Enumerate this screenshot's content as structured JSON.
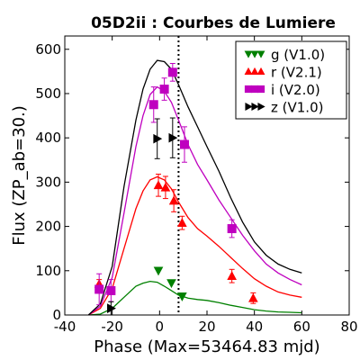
{
  "chart_data": {
    "type": "line",
    "title": "05D2ii : Courbes de Lumiere",
    "xlabel": "Phase (Max=53464.83 mjd)",
    "ylabel": "Flux (ZP_ab=30.)",
    "xlim": [
      -40,
      80
    ],
    "ylim": [
      0,
      630
    ],
    "xticks": [
      -40,
      -20,
      0,
      20,
      40,
      60,
      80
    ],
    "yticks": [
      0,
      100,
      200,
      300,
      400,
      500,
      600
    ],
    "vline_x": 8,
    "legend_position": "top-right",
    "series": [
      {
        "name": "g (V1.0)",
        "color": "#008000",
        "marker": "triangle-down",
        "points": [
          {
            "x": -0.5,
            "y": 100
          },
          {
            "x": 5,
            "y": 72
          },
          {
            "x": 9.5,
            "y": 42
          }
        ],
        "model": [
          [
            -30,
            0
          ],
          [
            -25,
            2
          ],
          [
            -20,
            15
          ],
          [
            -15,
            40
          ],
          [
            -10,
            65
          ],
          [
            -7,
            72
          ],
          [
            -4,
            76
          ],
          [
            -1,
            74
          ],
          [
            2,
            65
          ],
          [
            5,
            55
          ],
          [
            8,
            45
          ],
          [
            12,
            38
          ],
          [
            16,
            35
          ],
          [
            20,
            33
          ],
          [
            25,
            28
          ],
          [
            30,
            22
          ],
          [
            35,
            17
          ],
          [
            40,
            12
          ],
          [
            45,
            9
          ],
          [
            50,
            7
          ],
          [
            55,
            6
          ],
          [
            60,
            5
          ]
        ]
      },
      {
        "name": "r (V2.1)",
        "color": "#ff0000",
        "marker": "triangle-up",
        "points": [
          {
            "x": -25.5,
            "y": 70,
            "err": 10
          },
          {
            "x": -0.5,
            "y": 293,
            "err": 25
          },
          {
            "x": 2.5,
            "y": 288,
            "err": 25
          },
          {
            "x": 6,
            "y": 258,
            "err": 25
          },
          {
            "x": 9.5,
            "y": 208,
            "err": 15
          },
          {
            "x": 30.5,
            "y": 88,
            "err": 15
          },
          {
            "x": 39.5,
            "y": 38,
            "err": 12
          }
        ],
        "model": [
          [
            -30,
            0
          ],
          [
            -25,
            15
          ],
          [
            -20,
            60
          ],
          [
            -15,
            150
          ],
          [
            -10,
            240
          ],
          [
            -7,
            280
          ],
          [
            -4,
            305
          ],
          [
            -1,
            312
          ],
          [
            2,
            305
          ],
          [
            5,
            285
          ],
          [
            8,
            255
          ],
          [
            12,
            220
          ],
          [
            16,
            195
          ],
          [
            20,
            178
          ],
          [
            25,
            155
          ],
          [
            30,
            130
          ],
          [
            35,
            105
          ],
          [
            40,
            82
          ],
          [
            45,
            65
          ],
          [
            50,
            52
          ],
          [
            55,
            45
          ],
          [
            60,
            40
          ]
        ]
      },
      {
        "name": "i (V2.0)",
        "color": "#bf00bf",
        "marker": "square",
        "points": [
          {
            "x": -25.5,
            "y": 58,
            "err": 35
          },
          {
            "x": -20.5,
            "y": 55,
            "err": 25
          },
          {
            "x": -2.5,
            "y": 475,
            "err": 40
          },
          {
            "x": 2,
            "y": 510,
            "err": 25
          },
          {
            "x": 5.5,
            "y": 548,
            "err": 20
          },
          {
            "x": 10.5,
            "y": 385,
            "err": 40
          },
          {
            "x": 30.5,
            "y": 195,
            "err": 20
          }
        ],
        "model": [
          [
            -30,
            0
          ],
          [
            -25,
            20
          ],
          [
            -20,
            85
          ],
          [
            -15,
            230
          ],
          [
            -10,
            380
          ],
          [
            -7,
            450
          ],
          [
            -4,
            498
          ],
          [
            -1,
            515
          ],
          [
            2,
            505
          ],
          [
            5,
            480
          ],
          [
            8,
            440
          ],
          [
            12,
            385
          ],
          [
            16,
            340
          ],
          [
            20,
            305
          ],
          [
            25,
            260
          ],
          [
            30,
            220
          ],
          [
            35,
            180
          ],
          [
            40,
            145
          ],
          [
            45,
            115
          ],
          [
            50,
            95
          ],
          [
            55,
            80
          ],
          [
            60,
            68
          ]
        ]
      },
      {
        "name": "z (V1.0)",
        "color": "#000000",
        "marker": "triangle-right",
        "points": [
          {
            "x": -20.5,
            "y": 15,
            "err": 15
          },
          {
            "x": -1,
            "y": 398,
            "err": 45
          },
          {
            "x": 5.5,
            "y": 400,
            "err": 45
          }
        ],
        "model": [
          [
            -30,
            0
          ],
          [
            -25,
            25
          ],
          [
            -20,
            110
          ],
          [
            -15,
            290
          ],
          [
            -10,
            440
          ],
          [
            -7,
            510
          ],
          [
            -4,
            555
          ],
          [
            -1,
            575
          ],
          [
            2,
            572
          ],
          [
            5,
            555
          ],
          [
            8,
            520
          ],
          [
            12,
            470
          ],
          [
            16,
            425
          ],
          [
            20,
            380
          ],
          [
            25,
            325
          ],
          [
            30,
            265
          ],
          [
            35,
            210
          ],
          [
            40,
            165
          ],
          [
            45,
            135
          ],
          [
            50,
            115
          ],
          [
            55,
            103
          ],
          [
            60,
            95
          ]
        ]
      }
    ]
  }
}
